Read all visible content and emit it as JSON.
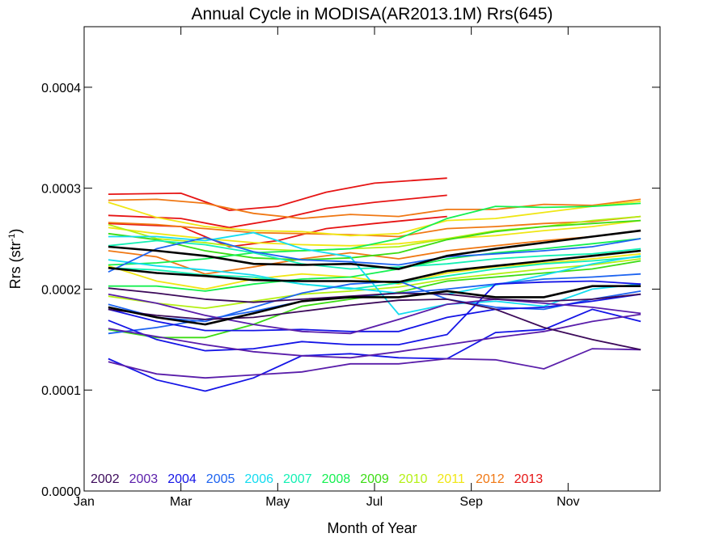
{
  "chart_data": {
    "type": "line",
    "title": "Annual Cycle in MODISA(AR2013.1M) Rrs(645)",
    "xlabel": "Month of Year",
    "ylabel": "Rrs (str",
    "ylabel_sup": "-1",
    "ylabel_end": ")",
    "xlim": [
      1,
      12.9
    ],
    "ylim": [
      0,
      0.00046
    ],
    "x_ticks": [
      {
        "x": 1,
        "label": "Jan"
      },
      {
        "x": 3,
        "label": "Mar"
      },
      {
        "x": 5,
        "label": "May"
      },
      {
        "x": 7,
        "label": "Jul"
      },
      {
        "x": 9,
        "label": "Sep"
      },
      {
        "x": 11,
        "label": "Nov"
      }
    ],
    "y_ticks": [
      {
        "y": 0,
        "label": "0.0000"
      },
      {
        "y": 0.0001,
        "label": "0.0001"
      },
      {
        "y": 0.0002,
        "label": "0.0002"
      },
      {
        "y": 0.0003,
        "label": "0.0003"
      },
      {
        "y": 0.0004,
        "label": "0.0004"
      }
    ],
    "legend": [
      {
        "label": "2002",
        "color": "#3c0a5a"
      },
      {
        "label": "2003",
        "color": "#5a1eaa"
      },
      {
        "label": "2004",
        "color": "#1414e6"
      },
      {
        "label": "2005",
        "color": "#1e64f0"
      },
      {
        "label": "2006",
        "color": "#14dcf0"
      },
      {
        "label": "2007",
        "color": "#14f0b4"
      },
      {
        "label": "2008",
        "color": "#14f050"
      },
      {
        "label": "2009",
        "color": "#3cdc14"
      },
      {
        "label": "2010",
        "color": "#b4f014"
      },
      {
        "label": "2011",
        "color": "#f0e614"
      },
      {
        "label": "2012",
        "color": "#f07814"
      },
      {
        "label": "2013",
        "color": "#e61414"
      }
    ],
    "series": [
      {
        "color": "#e61414",
        "x": [
          1.5,
          3,
          4,
          5,
          6,
          7,
          8.5
        ],
        "values": [
          0.000294,
          0.000295,
          0.000278,
          0.000282,
          0.000296,
          0.000305,
          0.00031
        ]
      },
      {
        "color": "#e61414",
        "x": [
          1.5,
          3,
          4,
          5,
          6,
          7,
          8.5
        ],
        "values": [
          0.000273,
          0.00027,
          0.000261,
          0.000269,
          0.00028,
          0.000286,
          0.000293
        ]
      },
      {
        "color": "#e61414",
        "x": [
          1.5,
          3,
          4,
          5,
          6,
          7,
          8.5
        ],
        "values": [
          0.000265,
          0.000262,
          0.000242,
          0.000248,
          0.00026,
          0.000265,
          0.000272
        ]
      },
      {
        "color": "#f07814",
        "x": [
          1.5,
          2.5,
          3.5,
          4.5,
          5.5,
          6.5,
          7.5,
          8.5,
          9.5,
          10.5,
          11.5,
          12.5
        ],
        "values": [
          0.000288,
          0.000289,
          0.000285,
          0.000275,
          0.00027,
          0.000274,
          0.000272,
          0.000279,
          0.000279,
          0.000284,
          0.000283,
          0.000289
        ]
      },
      {
        "color": "#f07814",
        "x": [
          1.5,
          2.5,
          3.5,
          4.5,
          5.5,
          6.5,
          7.5,
          8.5,
          9.5,
          10.5,
          11.5,
          12.5
        ],
        "values": [
          0.000266,
          0.000264,
          0.00026,
          0.000256,
          0.000255,
          0.000254,
          0.000252,
          0.00026,
          0.000262,
          0.000265,
          0.000267,
          0.000272
        ]
      },
      {
        "color": "#f07814",
        "x": [
          1.5,
          2.5,
          3.5,
          4.5,
          5.5,
          6.5,
          7.5,
          8.5,
          9.5,
          10.5,
          11.5,
          12.5
        ],
        "values": [
          0.000238,
          0.000232,
          0.000215,
          0.000222,
          0.00023,
          0.000236,
          0.00023,
          0.000238,
          0.000243,
          0.000248,
          0.000252,
          0.000258
        ]
      },
      {
        "color": "#f0e614",
        "x": [
          1.5,
          2.5,
          3.5,
          4.5,
          5.5,
          6.5,
          7.5,
          8.5,
          9.5,
          10.5,
          11.5,
          12.5
        ],
        "values": [
          0.000286,
          0.000271,
          0.000262,
          0.000258,
          0.000257,
          0.000253,
          0.000255,
          0.000268,
          0.00027,
          0.000276,
          0.000282,
          0.000287
        ]
      },
      {
        "color": "#f0e614",
        "x": [
          1.5,
          2.5,
          3.5,
          4.5,
          5.5,
          6.5,
          7.5,
          8.5,
          9.5,
          10.5,
          11.5,
          12.5
        ],
        "values": [
          0.000261,
          0.000255,
          0.00025,
          0.000246,
          0.000244,
          0.000243,
          0.000245,
          0.00025,
          0.000253,
          0.000258,
          0.000262,
          0.000268
        ]
      },
      {
        "color": "#f0e614",
        "x": [
          1.5,
          2.5,
          3.5,
          4.5,
          5.5,
          6.5,
          7.5,
          8.5,
          9.5,
          10.5,
          11.5,
          12.5
        ],
        "values": [
          0.000223,
          0.000208,
          0.0002,
          0.00021,
          0.000215,
          0.000212,
          0.000205,
          0.000216,
          0.000222,
          0.000226,
          0.00023,
          0.000235
        ]
      },
      {
        "color": "#b4f014",
        "x": [
          1.5,
          2.5,
          3.5,
          4.5,
          5.5,
          6.5,
          7.5,
          8.5,
          9.5,
          10.5,
          11.5,
          12.5
        ],
        "values": [
          0.000264,
          0.00025,
          0.000246,
          0.00024,
          0.000238,
          0.00024,
          0.000242,
          0.00025,
          0.000258,
          0.000262,
          0.000268,
          0.000272
        ]
      },
      {
        "color": "#b4f014",
        "x": [
          1.5,
          2.5,
          3.5,
          4.5,
          5.5,
          6.5,
          7.5,
          8.5,
          9.5,
          10.5,
          11.5,
          12.5
        ],
        "values": [
          0.000193,
          0.000186,
          0.000181,
          0.000188,
          0.000195,
          0.000198,
          0.000202,
          0.00021,
          0.000215,
          0.00022,
          0.000224,
          0.00023
        ]
      },
      {
        "color": "#3cdc14",
        "x": [
          1.5,
          2.5,
          3.5,
          4.5,
          5.5,
          6.5,
          7.5,
          8.5,
          9.5,
          10.5,
          11.5,
          12.5
        ],
        "values": [
          0.000255,
          0.000249,
          0.000238,
          0.000231,
          0.000229,
          0.000231,
          0.000236,
          0.000249,
          0.000257,
          0.000262,
          0.000265,
          0.000268
        ]
      },
      {
        "color": "#3cdc14",
        "x": [
          1.5,
          2.5,
          3.5,
          4.5,
          5.5,
          6.5,
          7.5,
          8.5,
          9.5,
          10.5,
          11.5,
          12.5
        ],
        "values": [
          0.00016,
          0.000152,
          0.000152,
          0.000165,
          0.000183,
          0.00019,
          0.000197,
          0.000208,
          0.000212,
          0.000216,
          0.00022,
          0.000228
        ]
      },
      {
        "color": "#14f050",
        "x": [
          1.5,
          2.5,
          3.5,
          4.5,
          5.5,
          6.5,
          7.5,
          8.5,
          9.5,
          10.5,
          11.5,
          12.5
        ],
        "values": [
          0.000224,
          0.000226,
          0.00023,
          0.000236,
          0.000238,
          0.00024,
          0.00025,
          0.00027,
          0.000282,
          0.000281,
          0.000282,
          0.000285
        ]
      },
      {
        "color": "#14f050",
        "x": [
          1.5,
          2.5,
          3.5,
          4.5,
          5.5,
          6.5,
          7.5,
          8.5,
          9.5,
          10.5,
          11.5,
          12.5
        ],
        "values": [
          0.000203,
          0.000203,
          0.000198,
          0.000205,
          0.00021,
          0.000212,
          0.00022,
          0.00023,
          0.000236,
          0.00024,
          0.000245,
          0.00025
        ]
      },
      {
        "color": "#14f0b4",
        "x": [
          1.5,
          2.5,
          3.5,
          4.5,
          5.5,
          6.5,
          7.5,
          8.5,
          9.5,
          10.5,
          11.5,
          12.5
        ],
        "values": [
          0.000243,
          0.000248,
          0.000244,
          0.000236,
          0.000225,
          0.00022,
          0.000222,
          0.000225,
          0.00023,
          0.000233,
          0.000235,
          0.00024
        ]
      },
      {
        "color": "#14f0b4",
        "x": [
          1.5,
          2.5,
          3.5,
          4.5,
          5.5,
          6.5,
          7.5,
          8.5,
          9.5,
          10.5,
          11.5,
          12.5
        ],
        "values": [
          0.000221,
          0.000219,
          0.000214,
          0.000212,
          0.000205,
          0.0002,
          0.000206,
          0.000213,
          0.00022,
          0.000225,
          0.000228,
          0.000232
        ]
      },
      {
        "color": "#14dcf0",
        "x": [
          1.5,
          2.5,
          3.5,
          4.5,
          5.5,
          6.5,
          7.5,
          8.5,
          9.5,
          10.5,
          11.5,
          12.5
        ],
        "values": [
          0.000252,
          0.000252,
          0.000248,
          0.000256,
          0.00024,
          0.000232,
          0.000175,
          0.000185,
          0.000188,
          0.000183,
          0.0002,
          0.000205
        ]
      },
      {
        "color": "#14dcf0",
        "x": [
          1.5,
          2.5,
          3.5,
          4.5,
          5.5,
          6.5,
          7.5,
          8.5,
          9.5,
          10.5,
          11.5,
          12.5
        ],
        "values": [
          0.000229,
          0.000223,
          0.000219,
          0.000214,
          0.000205,
          0.000201,
          0.000196,
          0.000195,
          0.000204,
          0.000214,
          0.000225,
          0.000233
        ]
      },
      {
        "color": "#1e64f0",
        "x": [
          1.5,
          2.5,
          3.5,
          4.5,
          5.5,
          6.5,
          7.5,
          8.5,
          9.5,
          10.5,
          11.5,
          12.5
        ],
        "values": [
          0.000217,
          0.00024,
          0.000251,
          0.000237,
          0.000229,
          0.000227,
          0.000224,
          0.000232,
          0.000235,
          0.000238,
          0.000242,
          0.00025
        ]
      },
      {
        "color": "#1e64f0",
        "x": [
          1.5,
          2.5,
          3.5,
          4.5,
          5.5,
          6.5,
          7.5,
          8.5,
          9.5,
          10.5,
          11.5,
          12.5
        ],
        "values": [
          0.000185,
          0.000172,
          0.000168,
          0.000182,
          0.000196,
          0.000205,
          0.000208,
          0.00019,
          0.000182,
          0.00018,
          0.00019,
          0.000198
        ]
      },
      {
        "color": "#1e64f0",
        "x": [
          1.5,
          2.5,
          3.5,
          4.5,
          5.5,
          6.5,
          7.5,
          8.5,
          9.5,
          10.5,
          11.5,
          12.5
        ],
        "values": [
          0.000156,
          0.000162,
          0.00017,
          0.000178,
          0.000188,
          0.000192,
          0.000196,
          0.0002,
          0.000205,
          0.00021,
          0.000212,
          0.000215
        ]
      },
      {
        "color": "#1414e6",
        "x": [
          1.5,
          2.5,
          3.5,
          4.5,
          5.5,
          6.5,
          7.5,
          8.5,
          9.5,
          10.5,
          11.5,
          12.5
        ],
        "values": [
          0.000131,
          0.00011,
          9.9e-05,
          0.000112,
          0.000134,
          0.000136,
          0.000132,
          0.000131,
          0.000157,
          0.00016,
          0.00018,
          0.000168
        ]
      },
      {
        "color": "#1414e6",
        "x": [
          1.5,
          2.5,
          3.5,
          4.5,
          5.5,
          6.5,
          7.5,
          8.5,
          9.5,
          10.5,
          11.5,
          12.5
        ],
        "values": [
          0.000169,
          0.00015,
          0.000139,
          0.000141,
          0.000148,
          0.000145,
          0.000145,
          0.000155,
          0.000205,
          0.000207,
          0.000208,
          0.000205
        ]
      },
      {
        "color": "#1414e6",
        "x": [
          1.5,
          2.5,
          3.5,
          4.5,
          5.5,
          6.5,
          7.5,
          8.5,
          9.5,
          10.5,
          11.5,
          12.5
        ],
        "values": [
          0.00018,
          0.000168,
          0.000159,
          0.000159,
          0.00016,
          0.000158,
          0.000158,
          0.000172,
          0.00018,
          0.000182,
          0.000188,
          0.000195
        ]
      },
      {
        "color": "#5a1eaa",
        "x": [
          1.5,
          2.5,
          3.5,
          4.5,
          5.5,
          6.5,
          7.5,
          8.5,
          9.5,
          10.5,
          11.5,
          12.5
        ],
        "values": [
          0.000128,
          0.000116,
          0.000112,
          0.000115,
          0.000118,
          0.000126,
          0.000126,
          0.000131,
          0.00013,
          0.000121,
          0.000141,
          0.00014
        ]
      },
      {
        "color": "#5a1eaa",
        "x": [
          1.5,
          2.5,
          3.5,
          4.5,
          5.5,
          6.5,
          7.5,
          8.5,
          9.5,
          10.5,
          11.5,
          12.5
        ],
        "values": [
          0.000161,
          0.000153,
          0.000145,
          0.000138,
          0.000134,
          0.000132,
          0.000138,
          0.000145,
          0.000152,
          0.000158,
          0.000168,
          0.000175
        ]
      },
      {
        "color": "#5a1eaa",
        "x": [
          1.5,
          2.5,
          3.5,
          4.5,
          5.5,
          6.5,
          7.5,
          8.5,
          9.5,
          10.5,
          11.5,
          12.5
        ],
        "values": [
          0.000195,
          0.000186,
          0.000174,
          0.000165,
          0.000158,
          0.000156,
          0.00017,
          0.000185,
          0.00019,
          0.000186,
          0.000182,
          0.000176
        ]
      },
      {
        "color": "#3c0a5a",
        "x": [
          1.5,
          2.5,
          3.5,
          4.5,
          5.5,
          6.5,
          7.5,
          8.5,
          9.5,
          10.5,
          11.5,
          12.5
        ],
        "values": [
          0.000201,
          0.000196,
          0.00019,
          0.000187,
          0.00019,
          0.000193,
          0.000196,
          0.000195,
          0.00019,
          0.000188,
          0.00019,
          0.000195
        ]
      },
      {
        "color": "#3c0a5a",
        "x": [
          1.5,
          2.5,
          3.5,
          4.5,
          5.5,
          6.5,
          7.5,
          8.5,
          9.5,
          10.5,
          11.5,
          12.5
        ],
        "values": [
          0.00018,
          0.000174,
          0.00017,
          0.000172,
          0.000178,
          0.000184,
          0.000189,
          0.00019,
          0.00018,
          0.000162,
          0.00015,
          0.00014
        ]
      },
      {
        "color": "#000000",
        "mean": true,
        "x": [
          1.5,
          2.5,
          3.5,
          4.5,
          5.5,
          6.5,
          7.5,
          8.5,
          9.5,
          10.5,
          11.5,
          12.5
        ],
        "values": [
          0.000242,
          0.000238,
          0.000233,
          0.000225,
          0.000224,
          0.000225,
          0.00022,
          0.000233,
          0.00024,
          0.000246,
          0.000252,
          0.000258
        ]
      },
      {
        "color": "#000000",
        "mean": true,
        "x": [
          1.5,
          2.5,
          3.5,
          4.5,
          5.5,
          6.5,
          7.5,
          8.5,
          9.5,
          10.5,
          11.5,
          12.5
        ],
        "values": [
          0.000221,
          0.000216,
          0.000213,
          0.000209,
          0.000208,
          0.000208,
          0.000207,
          0.000218,
          0.000223,
          0.000228,
          0.000233,
          0.000238
        ]
      },
      {
        "color": "#000000",
        "mean": true,
        "x": [
          1.5,
          2.5,
          3.5,
          4.5,
          5.5,
          6.5,
          7.5,
          8.5,
          9.5,
          10.5,
          11.5,
          12.5
        ],
        "values": [
          0.000182,
          0.000172,
          0.000165,
          0.000176,
          0.000188,
          0.000192,
          0.000192,
          0.000198,
          0.000192,
          0.000192,
          0.000203,
          0.000203
        ]
      }
    ]
  }
}
